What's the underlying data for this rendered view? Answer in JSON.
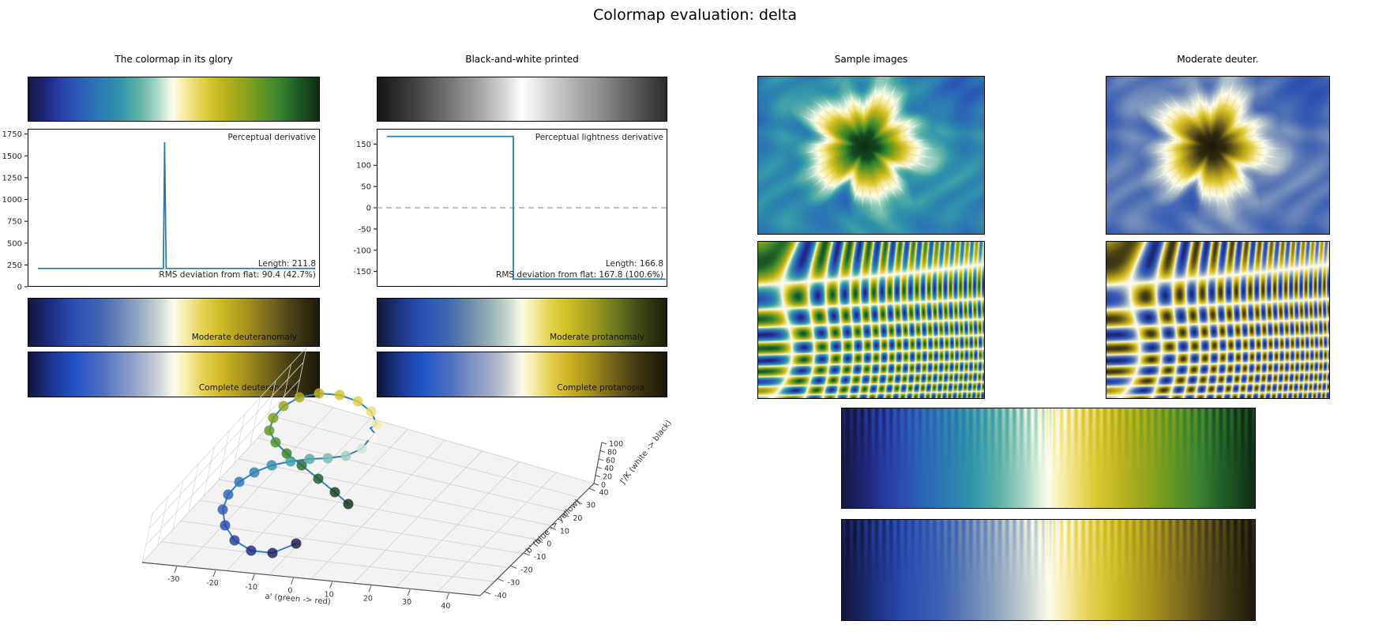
{
  "figure": {
    "title": "Colormap evaluation: delta",
    "background": "#ffffff",
    "line_color": "#1f77b4",
    "dashed_zero_color": "#999999"
  },
  "columns": {
    "glory": {
      "title": "The colormap in its glory",
      "cvd_bars": [
        {
          "label": "Moderate deuteranomaly",
          "cmap": "moderate_deuteranomaly"
        },
        {
          "label": "Complete deuteranopia",
          "cmap": "complete_deuteranopia"
        }
      ]
    },
    "bw": {
      "title": "Black-and-white printed",
      "cvd_bars": [
        {
          "label": "Moderate protanomaly",
          "cmap": "moderate_protanomaly"
        },
        {
          "label": "Complete protanopia",
          "cmap": "complete_protanopia"
        }
      ]
    },
    "samples": {
      "title": "Sample images"
    },
    "deuter_samples": {
      "title": "Moderate deuter."
    }
  },
  "colormaps": {
    "delta": {
      "stops": [
        [
          0.0,
          "#17193e"
        ],
        [
          0.06,
          "#20267c"
        ],
        [
          0.12,
          "#2944ac"
        ],
        [
          0.18,
          "#2a5fb5"
        ],
        [
          0.25,
          "#2b7ab3"
        ],
        [
          0.32,
          "#3397aa"
        ],
        [
          0.38,
          "#5db1a4"
        ],
        [
          0.44,
          "#a5d4c6"
        ],
        [
          0.48,
          "#e2f2dd"
        ],
        [
          0.5,
          "#fdfdf0"
        ],
        [
          0.52,
          "#f9f2bc"
        ],
        [
          0.57,
          "#ecdc72"
        ],
        [
          0.62,
          "#d8c72e"
        ],
        [
          0.68,
          "#b7b31c"
        ],
        [
          0.74,
          "#91a31e"
        ],
        [
          0.8,
          "#659723"
        ],
        [
          0.86,
          "#3a862e"
        ],
        [
          0.92,
          "#206028"
        ],
        [
          1.0,
          "#0d2d14"
        ]
      ]
    },
    "gray": {
      "stops": [
        [
          0.0,
          "#151515"
        ],
        [
          0.12,
          "#3f3f3f"
        ],
        [
          0.25,
          "#757575"
        ],
        [
          0.36,
          "#a8a8a8"
        ],
        [
          0.45,
          "#dcdcdc"
        ],
        [
          0.5,
          "#fefefe"
        ],
        [
          0.56,
          "#e3e3e3"
        ],
        [
          0.66,
          "#b8b8b8"
        ],
        [
          0.78,
          "#8a8a8a"
        ],
        [
          0.9,
          "#555555"
        ],
        [
          1.0,
          "#2c2c2c"
        ]
      ]
    },
    "moderate_deuteranomaly": {
      "stops": [
        [
          0.0,
          "#141537"
        ],
        [
          0.08,
          "#1e2f80"
        ],
        [
          0.15,
          "#2a4cb0"
        ],
        [
          0.24,
          "#3c62b4"
        ],
        [
          0.32,
          "#6d87b8"
        ],
        [
          0.4,
          "#a3b4c4"
        ],
        [
          0.46,
          "#d4dcd8"
        ],
        [
          0.5,
          "#fcfcee"
        ],
        [
          0.54,
          "#f6ecac"
        ],
        [
          0.6,
          "#e4d252"
        ],
        [
          0.66,
          "#d0bc22"
        ],
        [
          0.74,
          "#ab981e"
        ],
        [
          0.82,
          "#7c6e1e"
        ],
        [
          0.9,
          "#4c4417"
        ],
        [
          1.0,
          "#1d190b"
        ]
      ]
    },
    "complete_deuteranopia": {
      "stops": [
        [
          0.0,
          "#121439"
        ],
        [
          0.09,
          "#1c3a9e"
        ],
        [
          0.16,
          "#2254c4"
        ],
        [
          0.25,
          "#4b6ec4"
        ],
        [
          0.33,
          "#8193c6"
        ],
        [
          0.41,
          "#b0bacf"
        ],
        [
          0.46,
          "#d8dcdf"
        ],
        [
          0.5,
          "#fdfcf0"
        ],
        [
          0.54,
          "#f8efb2"
        ],
        [
          0.6,
          "#e6d257"
        ],
        [
          0.66,
          "#d2ba25"
        ],
        [
          0.74,
          "#a8941f"
        ],
        [
          0.82,
          "#776a1b"
        ],
        [
          0.9,
          "#453d13"
        ],
        [
          1.0,
          "#1c180a"
        ]
      ]
    },
    "moderate_protanomaly": {
      "stops": [
        [
          0.0,
          "#131734"
        ],
        [
          0.08,
          "#1e3684"
        ],
        [
          0.15,
          "#2751b4"
        ],
        [
          0.24,
          "#3b67b0"
        ],
        [
          0.32,
          "#6b8bac"
        ],
        [
          0.4,
          "#9fb6b8"
        ],
        [
          0.46,
          "#cfdcd2"
        ],
        [
          0.5,
          "#fcfce9"
        ],
        [
          0.54,
          "#f4eca4"
        ],
        [
          0.6,
          "#e0d348"
        ],
        [
          0.66,
          "#ccc021"
        ],
        [
          0.74,
          "#a3a020"
        ],
        [
          0.82,
          "#6f7a1e"
        ],
        [
          0.9,
          "#434c15"
        ],
        [
          1.0,
          "#191d0b"
        ]
      ]
    },
    "complete_protanopia": {
      "stops": [
        [
          0.0,
          "#101433"
        ],
        [
          0.09,
          "#1a3f9f"
        ],
        [
          0.16,
          "#2057c6"
        ],
        [
          0.25,
          "#4a70c2"
        ],
        [
          0.33,
          "#8092c2"
        ],
        [
          0.41,
          "#aeb4cb"
        ],
        [
          0.46,
          "#d6d7da"
        ],
        [
          0.5,
          "#fdfbea"
        ],
        [
          0.54,
          "#f7eba8"
        ],
        [
          0.6,
          "#e3cf4e"
        ],
        [
          0.66,
          "#cdb422"
        ],
        [
          0.74,
          "#a28e1c"
        ],
        [
          0.82,
          "#6f6118"
        ],
        [
          0.9,
          "#403811"
        ],
        [
          1.0,
          "#1a1509"
        ]
      ]
    }
  },
  "chart_data": [
    {
      "id": "perceptual_derivative",
      "type": "line",
      "label": "Perceptual derivative",
      "annotations": [
        "Length: 211.8",
        "RMS deviation from flat: 90.4 (42.7%)"
      ],
      "xlim": [
        0,
        1
      ],
      "ylim": [
        0,
        1810
      ],
      "yticks": [
        0,
        250,
        500,
        750,
        1000,
        1250,
        1500,
        1750
      ],
      "flat_value": 210,
      "spike": {
        "x": 0.47,
        "peak": 1655
      },
      "grid": false,
      "line_color": "#1f77b4"
    },
    {
      "id": "perceptual_lightness_derivative",
      "type": "line",
      "label": "Perceptual lightness derivative",
      "annotations": [
        "Length: 166.8",
        "RMS deviation from flat: 167.8 (100.6%)"
      ],
      "xlim": [
        0,
        1
      ],
      "ylim": [
        -186,
        186
      ],
      "yticks": [
        150,
        100,
        50,
        0,
        -50,
        -100,
        -150
      ],
      "value_before": 168,
      "value_after": -168,
      "step_x": 0.47,
      "zero_line_dashed": true,
      "grid": false,
      "line_color": "#1f77b4"
    },
    {
      "id": "colormap_3d_path",
      "type": "scatter3d",
      "xlabel": "a' (green -> red)",
      "ylabel": "b' (blue -> yellow)",
      "zlabel": "J'/K (white -> black)",
      "xticks": [
        -30,
        -20,
        -10,
        0,
        10,
        20,
        30,
        40
      ],
      "yticks": [
        -40,
        -30,
        -20,
        -10,
        0,
        10,
        20,
        30,
        40
      ],
      "zticks": [
        0,
        20,
        40,
        60,
        80,
        100
      ],
      "n_points": 31,
      "point_cmap": "delta",
      "line_color": "#2f7fc1"
    }
  ]
}
